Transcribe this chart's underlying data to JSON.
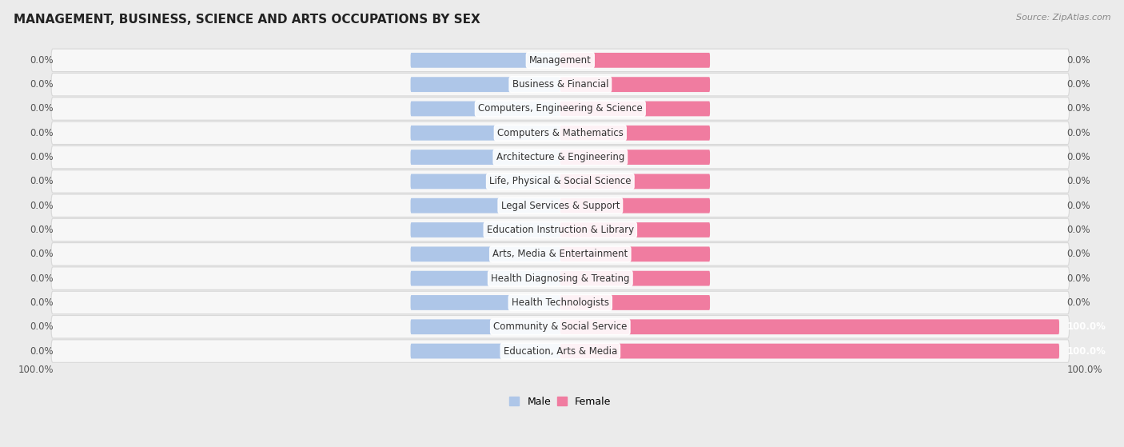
{
  "title": "MANAGEMENT, BUSINESS, SCIENCE AND ARTS OCCUPATIONS BY SEX",
  "source": "Source: ZipAtlas.com",
  "categories": [
    "Management",
    "Business & Financial",
    "Computers, Engineering & Science",
    "Computers & Mathematics",
    "Architecture & Engineering",
    "Life, Physical & Social Science",
    "Legal Services & Support",
    "Education Instruction & Library",
    "Arts, Media & Entertainment",
    "Health Diagnosing & Treating",
    "Health Technologists",
    "Community & Social Service",
    "Education, Arts & Media"
  ],
  "male_values": [
    0.0,
    0.0,
    0.0,
    0.0,
    0.0,
    0.0,
    0.0,
    0.0,
    0.0,
    0.0,
    0.0,
    0.0,
    0.0
  ],
  "female_values": [
    0.0,
    0.0,
    0.0,
    0.0,
    0.0,
    0.0,
    0.0,
    0.0,
    0.0,
    0.0,
    0.0,
    100.0,
    100.0
  ],
  "male_color": "#aec6e8",
  "female_color": "#f07ca0",
  "bg_color": "#ebebeb",
  "row_bg_color": "#f7f7f7",
  "row_edge_color": "#d8d8d8",
  "xlim": 100.0,
  "stub_size": 30.0,
  "bar_height": 0.62,
  "label_fontsize": 8.5,
  "value_fontsize": 8.5,
  "title_fontsize": 11,
  "source_fontsize": 8,
  "legend_fontsize": 9
}
